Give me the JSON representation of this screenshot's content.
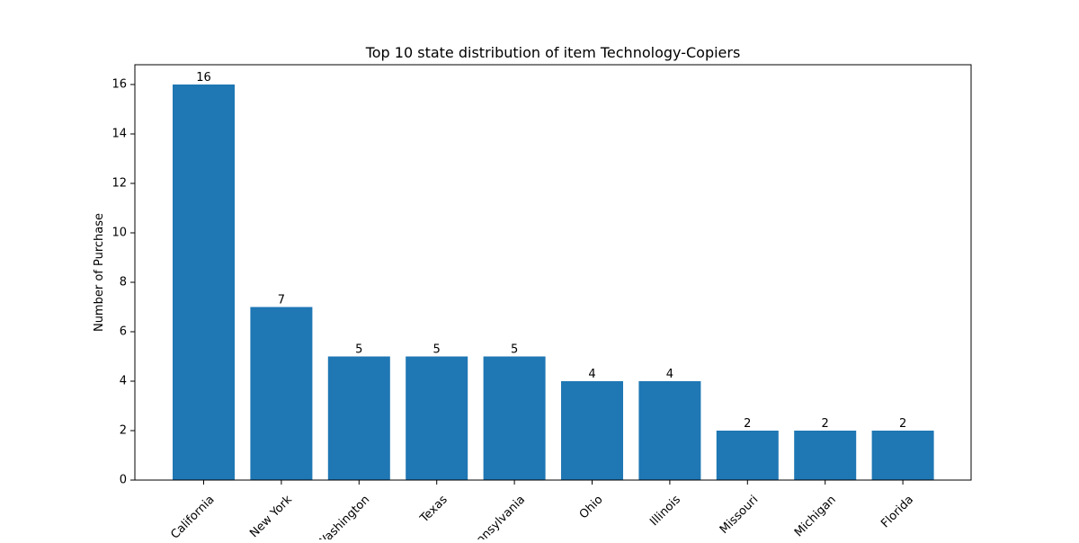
{
  "chart_data": {
    "type": "bar",
    "title": "Top 10 state distribution of item Technology-Copiers",
    "xlabel": "",
    "ylabel": "Number of Purchase",
    "categories": [
      "California",
      "New York",
      "Washington",
      "Texas",
      "Pennsylvania",
      "Ohio",
      "Illinois",
      "Missouri",
      "Michigan",
      "Florida"
    ],
    "values": [
      16,
      7,
      5,
      5,
      5,
      4,
      4,
      2,
      2,
      2
    ],
    "ylim": [
      0,
      16.8
    ],
    "yticks": [
      0,
      2,
      4,
      6,
      8,
      10,
      12,
      14,
      16
    ],
    "bar_color": "#1f77b4",
    "grid": false,
    "legend": "none",
    "xtick_rotation_deg": 45
  }
}
